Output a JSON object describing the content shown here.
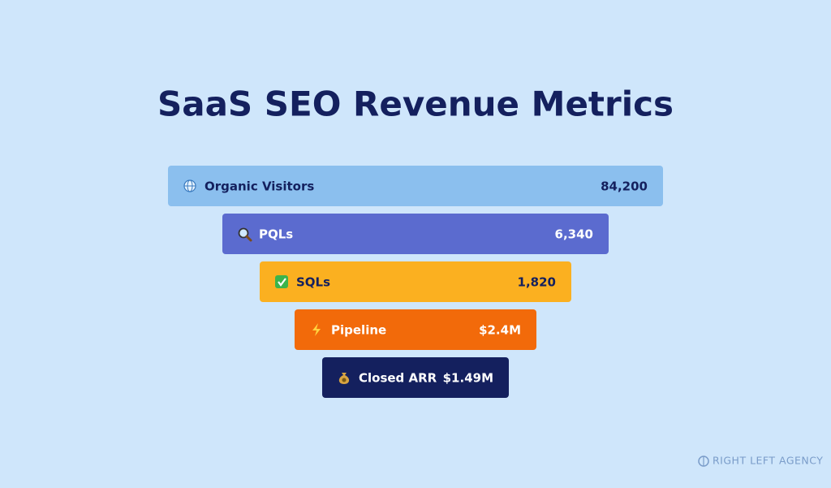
{
  "title": "SaaS SEO Revenue Metrics",
  "funnel": [
    {
      "label": "Organic Visitors",
      "value": "84,200"
    },
    {
      "label": "PQLs",
      "value": "6,340"
    },
    {
      "label": "SQLs",
      "value": "1,820"
    },
    {
      "label": "Pipeline",
      "value": "$2.4M"
    },
    {
      "label": "Closed ARR",
      "value": "$1.49M"
    }
  ],
  "brand": "RIGHT LEFT AGENCY"
}
